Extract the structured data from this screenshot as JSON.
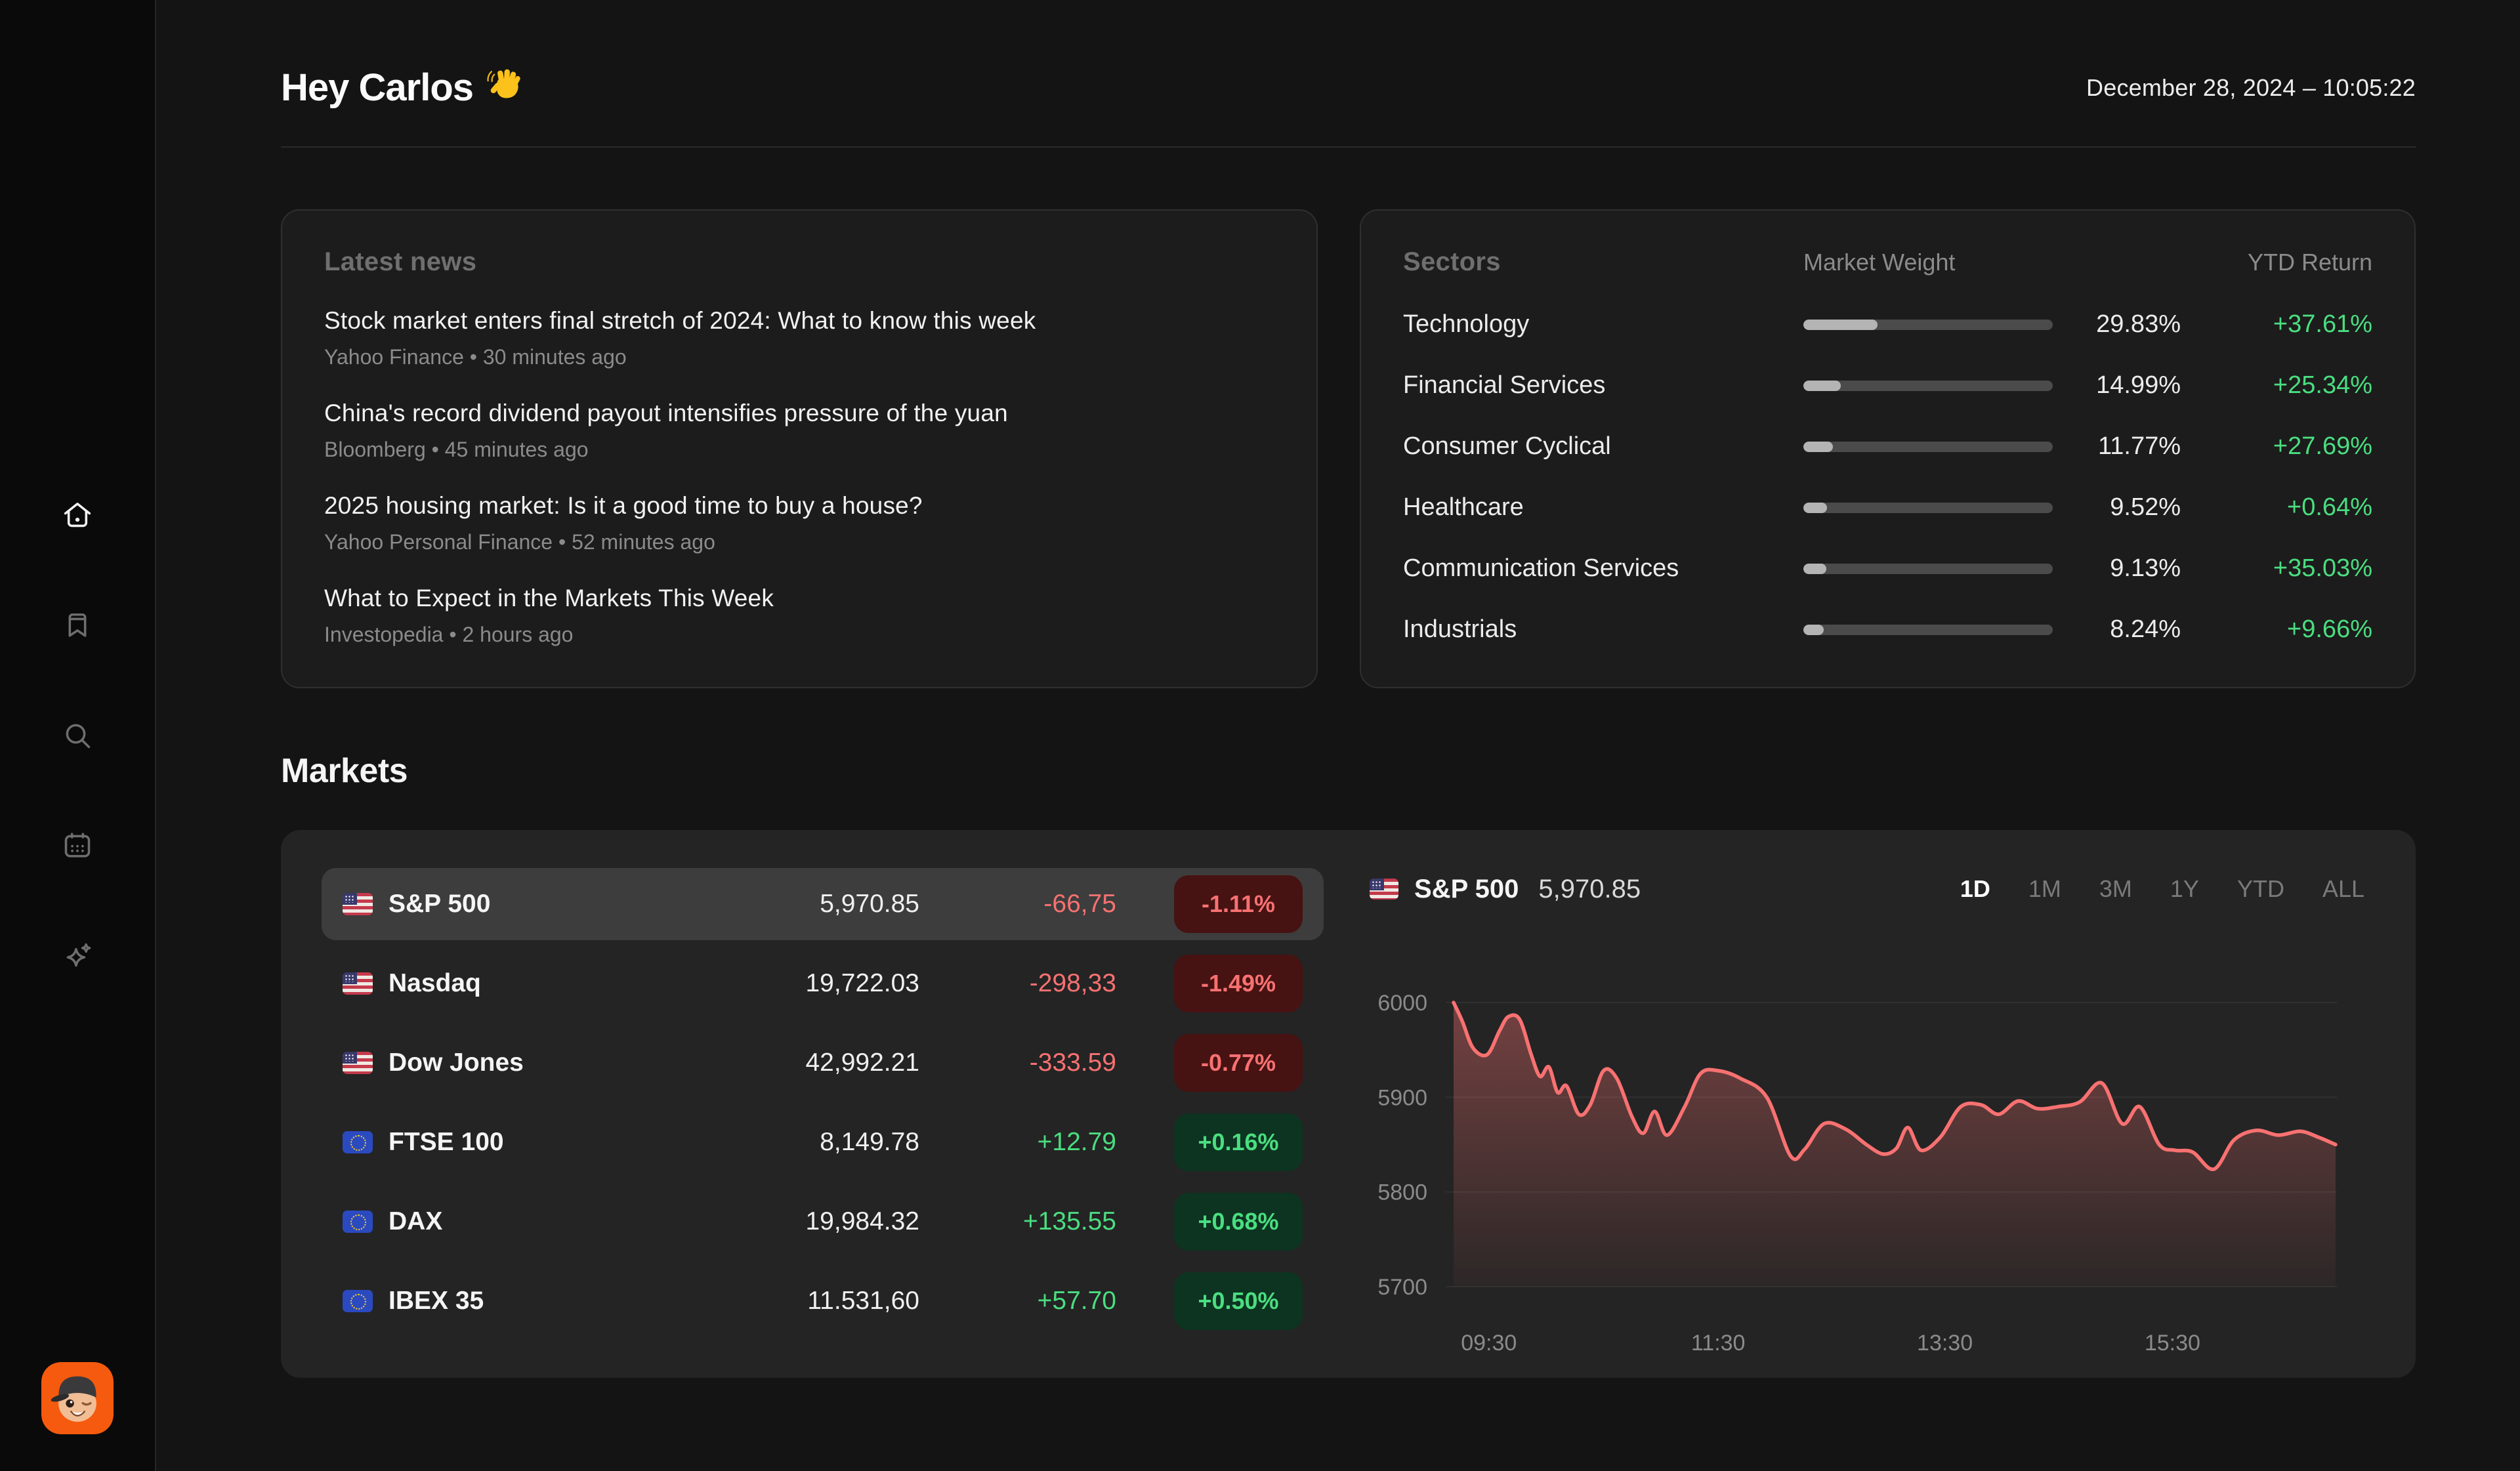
{
  "header": {
    "greeting": "Hey Carlos",
    "wave_emoji": "👋",
    "datetime": "December 28, 2024 – 10:05:22"
  },
  "sidebar": {
    "items": [
      {
        "id": "home",
        "label": "Home",
        "active": true
      },
      {
        "id": "bookmarks",
        "label": "Watchlist",
        "active": false
      },
      {
        "id": "search",
        "label": "Search",
        "active": false
      },
      {
        "id": "calendar",
        "label": "Calendar",
        "active": false
      },
      {
        "id": "ai",
        "label": "AI Assistant",
        "active": false
      }
    ]
  },
  "news": {
    "title": "Latest news",
    "items": [
      {
        "headline": "Stock market enters final stretch of 2024: What to know this week",
        "source": "Yahoo Finance",
        "time_ago": "30 minutes ago"
      },
      {
        "headline": "China's record dividend payout intensifies pressure of the yuan",
        "source": "Bloomberg",
        "time_ago": "45 minutes ago"
      },
      {
        "headline": "2025 housing market: Is it a good time to buy a house?",
        "source": "Yahoo Personal Finance",
        "time_ago": "52 minutes ago"
      },
      {
        "headline": "What to Expect in the Markets This Week",
        "source": "Investopedia",
        "time_ago": "2 hours ago"
      }
    ]
  },
  "sectors": {
    "title": "Sectors",
    "col_weight": "Market Weight",
    "col_ytd": "YTD Return",
    "rows": [
      {
        "name": "Technology",
        "weight_value": 29.83,
        "weight_pct": "29.83%",
        "ytd": "+37.61%"
      },
      {
        "name": "Financial Services",
        "weight_value": 14.99,
        "weight_pct": "14.99%",
        "ytd": "+25.34%"
      },
      {
        "name": "Consumer Cyclical",
        "weight_value": 11.77,
        "weight_pct": "11.77%",
        "ytd": "+27.69%"
      },
      {
        "name": "Healthcare",
        "weight_value": 9.52,
        "weight_pct": "9.52%",
        "ytd": "+0.64%"
      },
      {
        "name": "Communication Services",
        "weight_value": 9.13,
        "weight_pct": "9.13%",
        "ytd": "+35.03%"
      },
      {
        "name": "Industrials",
        "weight_value": 8.24,
        "weight_pct": "8.24%",
        "ytd": "+9.66%"
      }
    ]
  },
  "markets": {
    "title": "Markets",
    "rows": [
      {
        "flag": "us",
        "name": "S&P 500",
        "value": "5,970.85",
        "change": "-66,75",
        "change_pct": "-1.11%",
        "direction": "down",
        "selected": true
      },
      {
        "flag": "us",
        "name": "Nasdaq",
        "value": "19,722.03",
        "change": "-298,33",
        "change_pct": "-1.49%",
        "direction": "down",
        "selected": false
      },
      {
        "flag": "us",
        "name": "Dow Jones",
        "value": "42,992.21",
        "change": "-333.59",
        "change_pct": "-0.77%",
        "direction": "down",
        "selected": false
      },
      {
        "flag": "eu",
        "name": "FTSE 100",
        "value": "8,149.78",
        "change": "+12.79",
        "change_pct": "+0.16%",
        "direction": "up",
        "selected": false
      },
      {
        "flag": "eu",
        "name": "DAX",
        "value": "19,984.32",
        "change": "+135.55",
        "change_pct": "+0.68%",
        "direction": "up",
        "selected": false
      },
      {
        "flag": "eu",
        "name": "IBEX 35",
        "value": "11.531,60",
        "change": "+57.70",
        "change_pct": "+0.50%",
        "direction": "up",
        "selected": false
      }
    ]
  },
  "chart_data": {
    "type": "area",
    "title": "S&P 500",
    "flag": "us",
    "current_value": "5,970.85",
    "timeframes": [
      "1D",
      "1M",
      "3M",
      "1Y",
      "YTD",
      "ALL"
    ],
    "active_timeframe": "1D",
    "ylabel": "",
    "xlabel": "",
    "ylim": [
      5700,
      6000
    ],
    "y_ticks": [
      6000,
      5900,
      5800,
      5700
    ],
    "x_ticks": [
      {
        "label": "09:30",
        "t": 0.04
      },
      {
        "label": "11:30",
        "t": 0.3
      },
      {
        "label": "13:30",
        "t": 0.557
      },
      {
        "label": "15:30",
        "t": 0.815
      }
    ],
    "grid": "horizontal-only",
    "legend": "none",
    "series": [
      {
        "name": "S&P 500 intraday",
        "points": [
          [
            0.0,
            6000
          ],
          [
            0.01,
            5980
          ],
          [
            0.022,
            5952
          ],
          [
            0.038,
            5945
          ],
          [
            0.052,
            5970
          ],
          [
            0.062,
            5985
          ],
          [
            0.075,
            5982
          ],
          [
            0.088,
            5945
          ],
          [
            0.098,
            5922
          ],
          [
            0.108,
            5932
          ],
          [
            0.118,
            5905
          ],
          [
            0.128,
            5912
          ],
          [
            0.142,
            5882
          ],
          [
            0.155,
            5892
          ],
          [
            0.17,
            5928
          ],
          [
            0.185,
            5920
          ],
          [
            0.202,
            5880
          ],
          [
            0.215,
            5862
          ],
          [
            0.228,
            5885
          ],
          [
            0.242,
            5860
          ],
          [
            0.262,
            5890
          ],
          [
            0.28,
            5925
          ],
          [
            0.3,
            5928
          ],
          [
            0.325,
            5920
          ],
          [
            0.355,
            5900
          ],
          [
            0.382,
            5838
          ],
          [
            0.398,
            5845
          ],
          [
            0.42,
            5872
          ],
          [
            0.445,
            5866
          ],
          [
            0.468,
            5850
          ],
          [
            0.487,
            5840
          ],
          [
            0.502,
            5846
          ],
          [
            0.515,
            5868
          ],
          [
            0.53,
            5844
          ],
          [
            0.552,
            5858
          ],
          [
            0.575,
            5890
          ],
          [
            0.598,
            5892
          ],
          [
            0.618,
            5882
          ],
          [
            0.64,
            5896
          ],
          [
            0.662,
            5888
          ],
          [
            0.685,
            5890
          ],
          [
            0.71,
            5895
          ],
          [
            0.735,
            5915
          ],
          [
            0.758,
            5872
          ],
          [
            0.778,
            5890
          ],
          [
            0.8,
            5850
          ],
          [
            0.818,
            5844
          ],
          [
            0.838,
            5842
          ],
          [
            0.862,
            5824
          ],
          [
            0.885,
            5855
          ],
          [
            0.91,
            5865
          ],
          [
            0.935,
            5860
          ],
          [
            0.96,
            5864
          ],
          [
            0.98,
            5858
          ],
          [
            1.0,
            5850
          ]
        ]
      }
    ]
  },
  "colors": {
    "positive": "#4ade80",
    "negative": "#f87171",
    "badge_positive_bg": "#0d3421",
    "badge_negative_bg": "#471212",
    "chart_line": "#f87171",
    "grid_line": "#303030",
    "axis_text": "#8b8b8b",
    "bar_track": "#4b4b4b",
    "bar_fill": "#b4b4b4",
    "avatar_bg": "#f65a0e"
  }
}
